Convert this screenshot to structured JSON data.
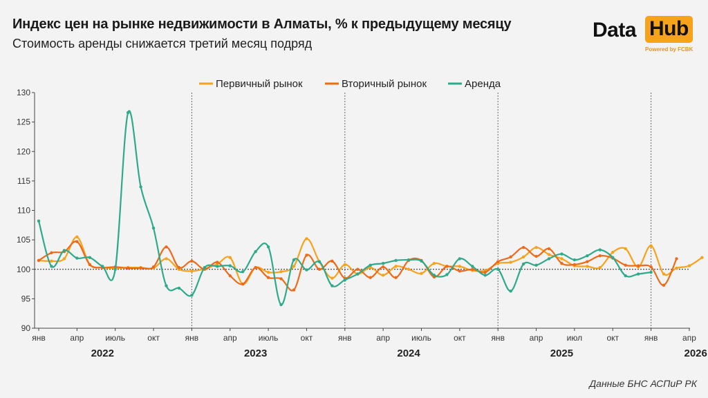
{
  "header": {
    "title": "Индекс цен на рынке недвижимости в Алматы, % к предыдущему месяцу",
    "subtitle": "Стоимость аренды снижается третий месяц подряд"
  },
  "logo": {
    "data_text": "Data",
    "hub_text": "Hub",
    "powered_text": "Powered by FCBK",
    "accent_color": "#f7a21b"
  },
  "source": "Данные БНС АСПиР РК",
  "chart_data": {
    "type": "line",
    "title": "Индекс цен на рынке недвижимости в Алматы, % к предыдущему месяцу",
    "ylim": [
      90,
      130
    ],
    "y_ticks": [
      90,
      95,
      100,
      105,
      110,
      115,
      120,
      125,
      130
    ],
    "reference_line": 100,
    "month_ticks": [
      {
        "index": 0,
        "label": "янв"
      },
      {
        "index": 3,
        "label": "апр"
      },
      {
        "index": 6,
        "label": "июль"
      },
      {
        "index": 9,
        "label": "окт"
      },
      {
        "index": 12,
        "label": "янв"
      },
      {
        "index": 15,
        "label": "апр"
      },
      {
        "index": 18,
        "label": "июль"
      },
      {
        "index": 21,
        "label": "окт"
      },
      {
        "index": 24,
        "label": "янв"
      },
      {
        "index": 27,
        "label": "апр"
      },
      {
        "index": 30,
        "label": "июль"
      },
      {
        "index": 33,
        "label": "окт"
      },
      {
        "index": 36,
        "label": "янв"
      },
      {
        "index": 39,
        "label": "апр"
      },
      {
        "index": 42,
        "label": "июл"
      },
      {
        "index": 45,
        "label": "окт"
      },
      {
        "index": 48,
        "label": "янв"
      },
      {
        "index": 51,
        "label": "апр"
      }
    ],
    "year_labels": [
      {
        "center_index": 5,
        "label": "2022"
      },
      {
        "center_index": 17,
        "label": "2023"
      },
      {
        "center_index": 29,
        "label": "2024"
      },
      {
        "center_index": 41,
        "label": "2025"
      },
      {
        "center_index": 51.5,
        "label": "2026"
      }
    ],
    "year_dividers": [
      12,
      24,
      36,
      48
    ],
    "legend_position": "top-center",
    "series": [
      {
        "name": "Первичный рынок",
        "color": "#f7a21b",
        "values": [
          101.5,
          101.4,
          101.8,
          105.5,
          100.8,
          100.3,
          100.2,
          100.3,
          100.3,
          100.2,
          101.8,
          100.0,
          99.7,
          100.1,
          100.9,
          102.0,
          97.5,
          100.3,
          99.5,
          99.6,
          100.5,
          105.2,
          101.3,
          98.5,
          100.8,
          99.2,
          100.3,
          99.0,
          100.5,
          100.0,
          99.3,
          101.0,
          100.5,
          100.5,
          99.8,
          99.8,
          101.0,
          101.2,
          102.1,
          103.7,
          102.5,
          101.8,
          100.6,
          100.5,
          100.3,
          102.9,
          103.5,
          100.4,
          104.0,
          99.2,
          100.2,
          100.6,
          102.0
        ]
      },
      {
        "name": "Вторичный рынок",
        "color": "#ec6a18",
        "values": [
          101.5,
          102.8,
          103.0,
          104.7,
          100.8,
          100.3,
          100.4,
          100.2,
          100.2,
          100.4,
          103.8,
          100.3,
          101.4,
          100.0,
          101.2,
          98.9,
          97.5,
          100.3,
          98.6,
          98.4,
          96.5,
          102.4,
          100.0,
          101.4,
          98.5,
          100.0,
          98.6,
          100.4,
          98.6,
          101.5,
          101.5,
          98.7,
          100.5,
          99.7,
          100.0,
          99.5,
          101.3,
          102.1,
          103.7,
          102.2,
          103.5,
          101.0,
          100.8,
          101.3,
          102.3,
          101.9,
          100.7,
          100.6,
          100.4,
          97.3,
          101.8
        ]
      },
      {
        "name": "Аренда",
        "color": "#2ea98a",
        "values": [
          108.2,
          100.5,
          103.2,
          101.9,
          102.0,
          100.5,
          100.0,
          126.6,
          114.0,
          107.0,
          97.2,
          96.8,
          95.6,
          100.3,
          100.5,
          100.6,
          99.6,
          103.0,
          103.8,
          94.0,
          101.6,
          99.9,
          101.3,
          97.2,
          98.2,
          99.2,
          100.7,
          101.0,
          101.5,
          101.6,
          101.4,
          99.0,
          99.1,
          101.8,
          100.5,
          99.0,
          100.0,
          96.3,
          100.9,
          100.7,
          101.8,
          102.6,
          101.6,
          102.3,
          103.3,
          102.0,
          98.9,
          99.2,
          99.5
        ]
      }
    ]
  }
}
